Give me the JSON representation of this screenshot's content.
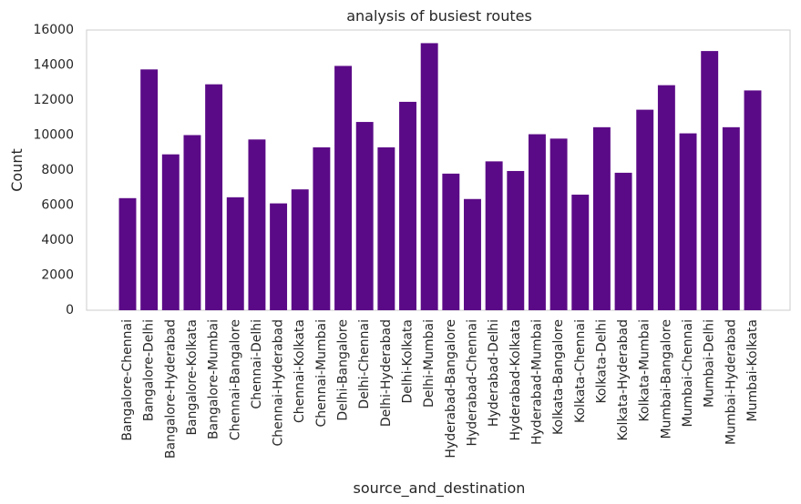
{
  "chart_data": {
    "type": "bar",
    "title": "analysis of busiest routes",
    "xlabel": "source_and_destination",
    "ylabel": "Count",
    "ylim": [
      0,
      16000
    ],
    "yticks": [
      0,
      2000,
      4000,
      6000,
      8000,
      10000,
      12000,
      14000,
      16000
    ],
    "grid": false,
    "bar_color": "#5b0a87",
    "categories": [
      "Bangalore-Chennai",
      "Bangalore-Delhi",
      "Bangalore-Hyderabad",
      "Bangalore-Kolkata",
      "Bangalore-Mumbai",
      "Chennai-Bangalore",
      "Chennai-Delhi",
      "Chennai-Hyderabad",
      "Chennai-Kolkata",
      "Chennai-Mumbai",
      "Delhi-Bangalore",
      "Delhi-Chennai",
      "Delhi-Hyderabad",
      "Delhi-Kolkata",
      "Delhi-Mumbai",
      "Hyderabad-Bangalore",
      "Hyderabad-Chennai",
      "Hyderabad-Delhi",
      "Hyderabad-Kolkata",
      "Hyderabad-Mumbai",
      "Kolkata-Bangalore",
      "Kolkata-Chennai",
      "Kolkata-Delhi",
      "Kolkata-Hyderabad",
      "Kolkata-Mumbai",
      "Mumbai-Bangalore",
      "Mumbai-Chennai",
      "Mumbai-Delhi",
      "Mumbai-Hyderabad",
      "Mumbai-Kolkata"
    ],
    "values": [
      6400,
      13750,
      8900,
      10000,
      12900,
      6450,
      9750,
      6100,
      6900,
      9300,
      13950,
      10750,
      9300,
      11900,
      15250,
      7800,
      6350,
      8500,
      7950,
      10050,
      9800,
      6600,
      10450,
      7850,
      11450,
      12850,
      10100,
      14800,
      10450,
      12550
    ]
  }
}
